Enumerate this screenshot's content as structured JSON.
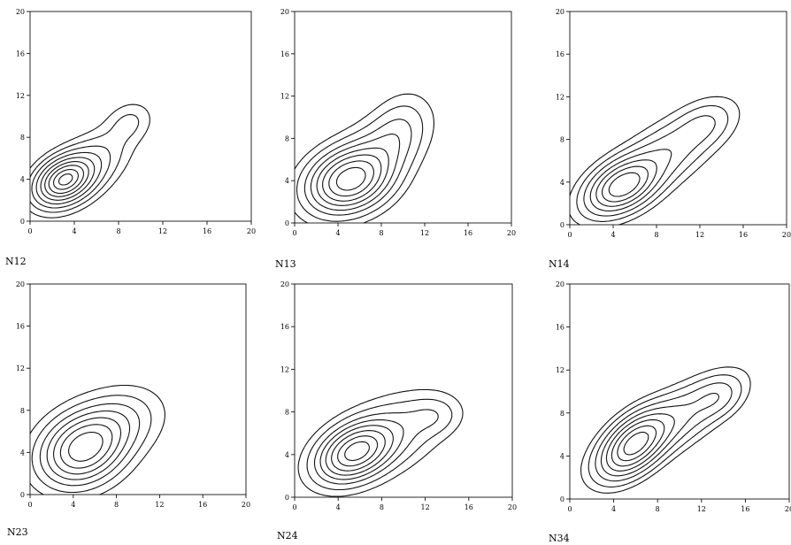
{
  "chart_data": [
    {
      "type": "contour",
      "panel_label": "N12",
      "xlim": [
        0,
        20
      ],
      "ylim": [
        0,
        20
      ],
      "xticks": [
        "0",
        "4",
        "8",
        "12",
        "16",
        "20"
      ],
      "yticks": [
        "0",
        "4",
        "8",
        "12",
        "16",
        "20"
      ],
      "peaks": [
        {
          "cx": 3.0,
          "cy": 3.9,
          "sx": 1.6,
          "sy": 1.4,
          "rho": 0.3,
          "amp": 1.0
        },
        {
          "cx": 5.0,
          "cy": 5.0,
          "sx": 2.4,
          "sy": 2.2,
          "rho": 0.55,
          "amp": 0.35
        },
        {
          "cx": 9.0,
          "cy": 9.5,
          "sx": 1.4,
          "sy": 1.3,
          "rho": 0.2,
          "amp": 0.15
        }
      ],
      "levels": [
        0.06,
        0.12,
        0.2,
        0.3,
        0.42,
        0.55,
        0.68,
        0.82,
        0.94
      ]
    },
    {
      "type": "contour",
      "panel_label": "N13",
      "xlim": [
        0,
        20
      ],
      "ylim": [
        0,
        20
      ],
      "xticks": [
        "0",
        "4",
        "8",
        "12",
        "16",
        "20"
      ],
      "yticks": [
        "0",
        "4",
        "8",
        "12",
        "16",
        "20"
      ],
      "peaks": [
        {
          "cx": 5.0,
          "cy": 4.0,
          "sx": 2.3,
          "sy": 1.8,
          "rho": 0.2,
          "amp": 1.0
        },
        {
          "cx": 7.0,
          "cy": 6.0,
          "sx": 3.0,
          "sy": 2.8,
          "rho": 0.6,
          "amp": 0.3
        },
        {
          "cx": 9.5,
          "cy": 8.5,
          "sx": 1.6,
          "sy": 2.2,
          "rho": 0.3,
          "amp": 0.15
        }
      ],
      "levels": [
        0.05,
        0.11,
        0.2,
        0.3,
        0.42,
        0.55,
        0.7,
        0.86
      ]
    },
    {
      "type": "contour",
      "panel_label": "N14",
      "xlim": [
        0,
        20
      ],
      "ylim": [
        0,
        20
      ],
      "xticks": [
        "0",
        "4",
        "8",
        "12",
        "16",
        "20"
      ],
      "yticks": [
        "0",
        "4",
        "8",
        "12",
        "16",
        "20"
      ],
      "peaks": [
        {
          "cx": 4.8,
          "cy": 3.6,
          "sx": 1.9,
          "sy": 1.5,
          "rho": 0.4,
          "amp": 1.0
        },
        {
          "cx": 8.0,
          "cy": 6.0,
          "sx": 3.6,
          "sy": 2.8,
          "rho": 0.75,
          "amp": 0.4
        },
        {
          "cx": 12.5,
          "cy": 9.5,
          "sx": 1.6,
          "sy": 1.3,
          "rho": 0.3,
          "amp": 0.15
        }
      ],
      "levels": [
        0.05,
        0.11,
        0.2,
        0.32,
        0.46,
        0.62,
        0.8
      ]
    },
    {
      "type": "contour",
      "panel_label": "N23",
      "xlim": [
        0,
        20
      ],
      "ylim": [
        0,
        20
      ],
      "xticks": [
        "0",
        "4",
        "8",
        "12",
        "16",
        "20"
      ],
      "yticks": [
        "0",
        "4",
        "8",
        "12",
        "16",
        "20"
      ],
      "peaks": [
        {
          "cx": 4.8,
          "cy": 4.2,
          "sx": 2.3,
          "sy": 2.0,
          "rho": 0.2,
          "amp": 1.0
        },
        {
          "cx": 7.5,
          "cy": 6.5,
          "sx": 2.6,
          "sy": 2.0,
          "rho": 0.3,
          "amp": 0.35
        }
      ],
      "levels": [
        0.05,
        0.12,
        0.22,
        0.34,
        0.48,
        0.64,
        0.82
      ]
    },
    {
      "type": "contour",
      "panel_label": "N24",
      "xlim": [
        0,
        20
      ],
      "ylim": [
        0,
        20
      ],
      "xticks": [
        "0",
        "4",
        "8",
        "12",
        "16",
        "20"
      ],
      "yticks": [
        "0",
        "4",
        "8",
        "12",
        "16",
        "20"
      ],
      "peaks": [
        {
          "cx": 5.5,
          "cy": 4.2,
          "sx": 2.0,
          "sy": 1.6,
          "rho": 0.35,
          "amp": 1.0
        },
        {
          "cx": 8.0,
          "cy": 5.5,
          "sx": 3.4,
          "sy": 2.4,
          "rho": 0.5,
          "amp": 0.35
        },
        {
          "cx": 12.8,
          "cy": 7.6,
          "sx": 1.5,
          "sy": 1.1,
          "rho": 0.1,
          "amp": 0.15
        }
      ],
      "levels": [
        0.05,
        0.11,
        0.2,
        0.3,
        0.42,
        0.56,
        0.72,
        0.88
      ]
    },
    {
      "type": "contour",
      "panel_label": "N34",
      "xlim": [
        0,
        20
      ],
      "ylim": [
        0,
        20
      ],
      "xticks": [
        "0",
        "4",
        "8",
        "12",
        "16",
        "20"
      ],
      "yticks": [
        "0",
        "4",
        "8",
        "12",
        "16",
        "20"
      ],
      "peaks": [
        {
          "cx": 5.8,
          "cy": 5.0,
          "sx": 1.8,
          "sy": 1.8,
          "rho": 0.5,
          "amp": 1.0
        },
        {
          "cx": 9.0,
          "cy": 7.0,
          "sx": 3.6,
          "sy": 2.6,
          "rho": 0.75,
          "amp": 0.4
        },
        {
          "cx": 13.5,
          "cy": 9.5,
          "sx": 1.4,
          "sy": 1.2,
          "rho": 0.3,
          "amp": 0.18
        }
      ],
      "levels": [
        0.05,
        0.1,
        0.18,
        0.28,
        0.4,
        0.54,
        0.7,
        0.86
      ]
    }
  ]
}
